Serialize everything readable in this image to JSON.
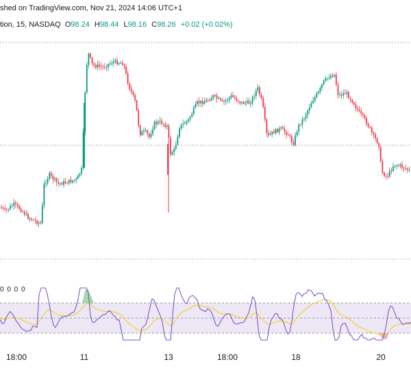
{
  "header": {
    "published": "shed on TradingView.com, Nov 21, 2024 14:06 UTC+1"
  },
  "symbol_line": {
    "name": "tion, 15, NASDAQ",
    "o_label": "O",
    "o_value": "98.24",
    "h_label": "H",
    "h_value": "98.44",
    "l_label": "L",
    "l_value": "98.16",
    "c_label": "C",
    "c_value": "98.26",
    "change": "+0.02 (+0.02%)"
  },
  "rsi_legend": "0 0 0 0",
  "colors": {
    "up": "#089981",
    "down": "#f23645",
    "rsi_line": "#7e57c2",
    "rsi_ma": "#f5d326",
    "rsi_band": "#ede7f6"
  },
  "chart_data": [
    {
      "type": "candlestick",
      "x_ticks": [
        "18:00",
        "11",
        "13",
        "18:00",
        "18",
        "20"
      ],
      "reference_levels": [
        "upper dotted line",
        "middle dotted line",
        "lower dotted line"
      ],
      "price_path_approx": [
        {
          "segment": "start",
          "level": "mid-low"
        },
        {
          "segment": "11",
          "move": "sharp rally to session high"
        },
        {
          "segment": "13",
          "move": "drop with long lower wick, recovery"
        },
        {
          "segment": "18",
          "move": "range, second peak"
        },
        {
          "segment": "20",
          "move": "decline below middle line"
        }
      ],
      "last": {
        "open": 98.24,
        "high": 98.44,
        "low": 98.16,
        "close": 98.26,
        "change": 0.02,
        "change_pct": 0.02
      }
    },
    {
      "type": "line",
      "title": "",
      "series": [
        {
          "name": "",
          "role": "RSI",
          "color": "#7e57c2"
        },
        {
          "name": "",
          "role": "RSI moving average",
          "color": "#f5d326"
        }
      ],
      "bands": "overbought / oversold shaded band"
    }
  ]
}
